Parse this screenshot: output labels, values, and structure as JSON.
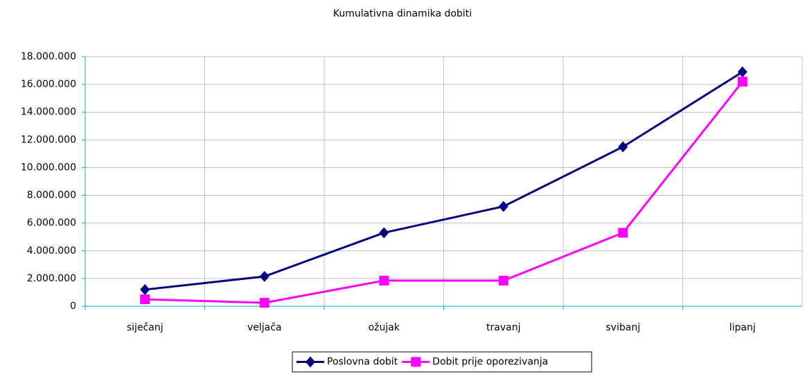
{
  "chart_data": {
    "type": "line",
    "title": "Kumulativna dinamika dobiti",
    "categories": [
      "siječanj",
      "veljača",
      "ožujak",
      "travanj",
      "svibanj",
      "lipanj"
    ],
    "series": [
      {
        "name": "Poslovna dobit",
        "color": "#000080",
        "marker": "diamond",
        "values": [
          1200000,
          2150000,
          5300000,
          7200000,
          11500000,
          16900000
        ]
      },
      {
        "name": "Dobit prije oporezivanja",
        "color": "#ff00ff",
        "marker": "square",
        "values": [
          500000,
          250000,
          1850000,
          1850000,
          5300000,
          16200000
        ]
      }
    ],
    "ylim": [
      0,
      18000000
    ],
    "yticks": [
      0,
      {
        "value": 2000000,
        "label": "2.000.000"
      },
      {
        "value": 4000000,
        "label": "4.000.000"
      },
      {
        "value": 6000000,
        "label": "6.000.000"
      },
      {
        "value": 8000000,
        "label": "8.000.000"
      },
      {
        "value": 10000000,
        "label": "10.000.000"
      },
      {
        "value": 12000000,
        "label": "12.000.000"
      },
      {
        "value": 14000000,
        "label": "14.000.000"
      },
      {
        "value": 16000000,
        "label": "16.000.000"
      },
      {
        "value": 18000000,
        "label": "18.000.000"
      }
    ],
    "grid": true,
    "legend": "bottom"
  }
}
